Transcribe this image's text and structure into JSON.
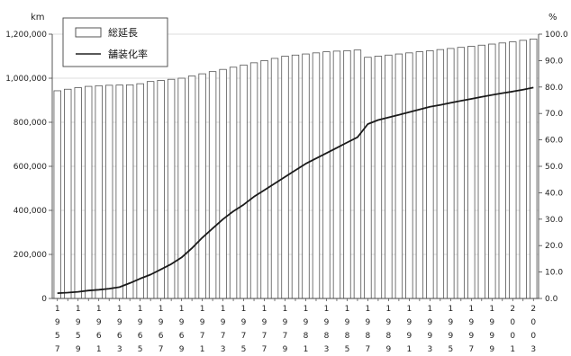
{
  "chart_data": {
    "type": "bar",
    "left_unit": "km",
    "right_unit": "%",
    "left_ticks": [
      "0",
      "200,000",
      "400,000",
      "600,000",
      "800,000",
      "1,000,000",
      "1,200,000"
    ],
    "right_ticks": [
      "0.0",
      "10.0",
      "20.0",
      "30.0",
      "40.0",
      "50.0",
      "60.0",
      "70.0",
      "80.0",
      "90.0",
      "100.0"
    ],
    "left_ylim": [
      0,
      1200000
    ],
    "right_ylim": [
      0,
      100
    ],
    "grid": true,
    "legend_position": "top-left",
    "x": [
      "1957",
      "1958",
      "1959",
      "1960",
      "1961",
      "1962",
      "1963",
      "1964",
      "1965",
      "1966",
      "1967",
      "1968",
      "1969",
      "1970",
      "1971",
      "1972",
      "1973",
      "1974",
      "1975",
      "1976",
      "1977",
      "1978",
      "1979",
      "1980",
      "1981",
      "1982",
      "1983",
      "1984",
      "1985",
      "1986",
      "1987",
      "1988",
      "1989",
      "1990",
      "1991",
      "1992",
      "1993",
      "1994",
      "1995",
      "1996",
      "1997",
      "1998",
      "1999",
      "2000",
      "2001",
      "2002",
      "2003"
    ],
    "x_tick_labels": [
      "1957",
      "1959",
      "1961",
      "1963",
      "1965",
      "1967",
      "1969",
      "1971",
      "1973",
      "1975",
      "1977",
      "1979",
      "1981",
      "1983",
      "1985",
      "1987",
      "1989",
      "1991",
      "1993",
      "1995",
      "1997",
      "1999",
      "2001",
      "2003"
    ],
    "series": [
      {
        "name": "総延長",
        "type": "bar",
        "axis": "left",
        "values": [
          943000,
          950000,
          957000,
          963000,
          966000,
          968000,
          969000,
          970000,
          975000,
          985000,
          990000,
          995000,
          1000000,
          1010000,
          1020000,
          1030000,
          1040000,
          1050000,
          1060000,
          1070000,
          1080000,
          1090000,
          1100000,
          1105000,
          1110000,
          1115000,
          1120000,
          1123000,
          1125000,
          1128000,
          1095000,
          1100000,
          1105000,
          1110000,
          1115000,
          1120000,
          1125000,
          1130000,
          1135000,
          1140000,
          1145000,
          1150000,
          1155000,
          1160000,
          1165000,
          1172000,
          1178000
        ]
      },
      {
        "name": "舗装化率",
        "type": "line",
        "axis": "right",
        "values": [
          2.0,
          2.2,
          2.5,
          3.0,
          3.3,
          3.7,
          4.3,
          5.8,
          7.5,
          9.0,
          11.0,
          13.0,
          15.5,
          19.0,
          23.0,
          26.5,
          30.0,
          33.0,
          35.5,
          38.5,
          41.0,
          43.5,
          46.0,
          48.5,
          51.0,
          53.0,
          55.0,
          57.0,
          59.0,
          61.0,
          66.0,
          67.5,
          68.5,
          69.5,
          70.5,
          71.5,
          72.5,
          73.2,
          74.0,
          74.8,
          75.5,
          76.3,
          77.0,
          77.7,
          78.3,
          79.0,
          79.8
        ]
      }
    ]
  }
}
